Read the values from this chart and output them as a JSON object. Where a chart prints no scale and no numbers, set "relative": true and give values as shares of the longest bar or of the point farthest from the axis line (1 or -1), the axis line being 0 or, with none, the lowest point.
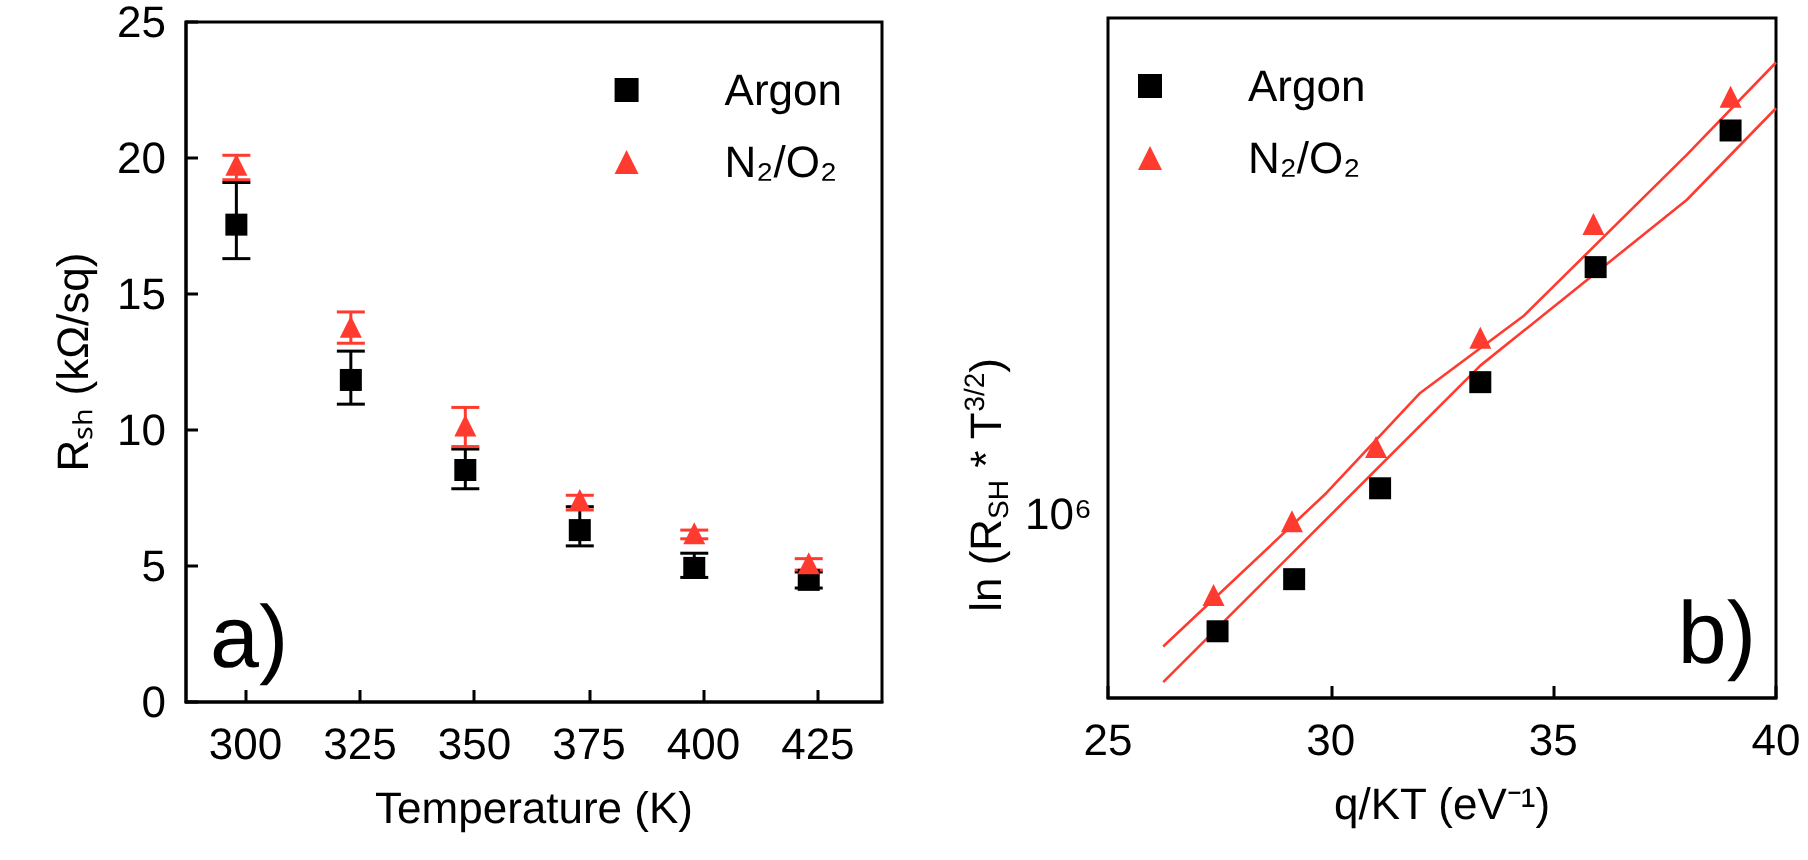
{
  "chart_data": [
    {
      "type": "scatter",
      "xlabel": "Temperature (K)",
      "ylabel": "Rₛₕ (kΩ/sq)",
      "xlim": [
        287,
        439
      ],
      "xticks": [
        300,
        325,
        350,
        375,
        400,
        425
      ],
      "ylim": [
        0,
        25
      ],
      "yticks": [
        0,
        5,
        10,
        15,
        20,
        25
      ],
      "grid": false,
      "legend": "top right",
      "annotations": [
        "a)"
      ],
      "series": [
        {
          "name": "Argon",
          "color": "#000000",
          "marker": "square",
          "x": [
            298,
            323,
            348,
            373,
            398,
            423
          ],
          "values": [
            17.55,
            11.84,
            8.53,
            6.32,
            4.93,
            4.49
          ],
          "errors": [
            [
              16.3,
              19.1
            ],
            [
              10.95,
              12.9
            ],
            [
              7.84,
              9.3
            ],
            [
              5.74,
              7.18
            ],
            [
              4.58,
              5.47
            ],
            [
              4.19,
              4.78
            ]
          ]
        },
        {
          "name": "N₂/O₂",
          "color": "#ff3b30",
          "marker": "triangle",
          "x": [
            298,
            323,
            348,
            373,
            398,
            423
          ],
          "values": [
            19.75,
            13.8,
            10.17,
            7.43,
            6.2,
            5.1
          ],
          "errors": [
            [
              19.2,
              20.1
            ],
            [
              13.19,
              14.34
            ],
            [
              9.39,
              10.83
            ],
            [
              7.06,
              7.6
            ],
            [
              6.0,
              6.32
            ],
            [
              4.85,
              5.27
            ]
          ]
        }
      ]
    },
    {
      "type": "scatter",
      "xlabel": "q/KT (eV⁻¹)",
      "ylabel": "ln (R$_{SH}$ * T$^{3/2}$)",
      "xlim": [
        25,
        40
      ],
      "xticks": [
        25,
        30,
        35,
        40
      ],
      "relative": true,
      "grid": false,
      "legend": "top left",
      "annotations": [
        "10⁶",
        "b)"
      ],
      "series": [
        {
          "name": "Argon",
          "color": "#000000",
          "marker": "square",
          "x": [
            27.46,
            29.18,
            31.11,
            33.36,
            35.95,
            38.98
          ],
          "values": [
            0.105,
            0.187,
            0.33,
            0.497,
            0.678,
            0.893
          ]
        },
        {
          "name": "N₂/O₂",
          "color": "#ff3b30",
          "marker": "triangle",
          "x": [
            27.37,
            29.13,
            31.02,
            33.36,
            35.9,
            38.98
          ],
          "values": [
            0.162,
            0.278,
            0.395,
            0.567,
            0.746,
            0.946
          ]
        },
        {
          "type": "line",
          "color": "#ff3b30",
          "marker": "none",
          "x": [
            26.24,
            29.91,
            32.01,
            34.33,
            38.0,
            40
          ],
          "values": [
            0.081,
            0.323,
            0.48,
            0.601,
            0.855,
            1
          ]
        },
        {
          "type": "line",
          "color": "#ff3b30",
          "marker": "none",
          "x": [
            26.24,
            33.36,
            38.0,
            40
          ],
          "values": [
            0.025,
            0.523,
            0.784,
            0.928
          ]
        }
      ]
    }
  ]
}
